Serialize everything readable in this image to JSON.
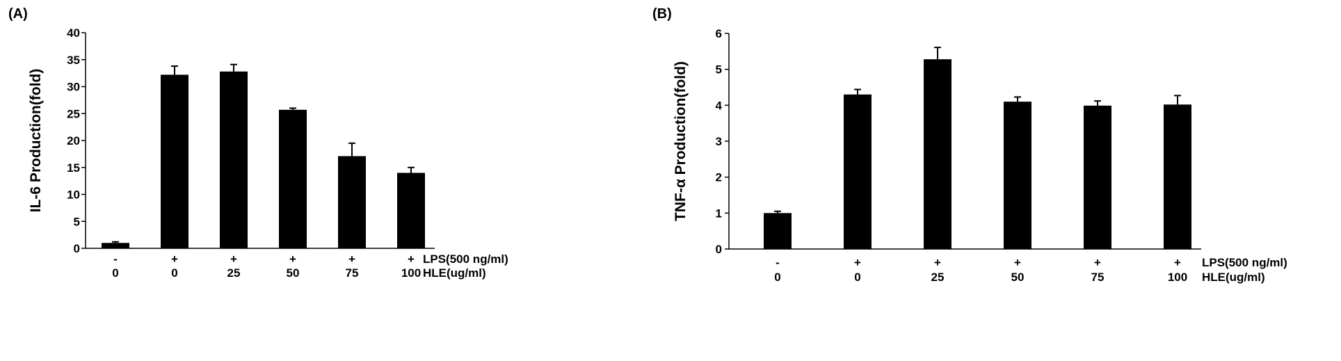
{
  "chart_data": [
    {
      "type": "bar",
      "panel_label": "(A)",
      "ylabel": "IL-6 Production(fold)",
      "ylim": [
        0,
        40
      ],
      "yticks": [
        0,
        5,
        10,
        15,
        20,
        25,
        30,
        35,
        40
      ],
      "lps": [
        "-",
        "+",
        "+",
        "+",
        "+",
        "+"
      ],
      "hle": [
        "0",
        "0",
        "25",
        "50",
        "75",
        "100"
      ],
      "lps_label": "LPS(500 ng/ml)",
      "hle_label": "HLE(ug/ml)",
      "values": [
        1.0,
        32.2,
        32.8,
        25.7,
        17.1,
        14.0
      ],
      "errors": [
        0.2,
        1.6,
        1.3,
        0.3,
        2.4,
        1.0
      ],
      "bar_color": "#000000",
      "grid": false
    },
    {
      "type": "bar",
      "panel_label": "(B)",
      "ylabel": "TNF-α Production(fold)",
      "ylim": [
        0,
        6
      ],
      "yticks": [
        0,
        1,
        2,
        3,
        4,
        5,
        6
      ],
      "lps": [
        "-",
        "+",
        "+",
        "+",
        "+",
        "+"
      ],
      "hle": [
        "0",
        "0",
        "25",
        "50",
        "75",
        "100"
      ],
      "lps_label": "LPS(500 ng/ml)",
      "hle_label": "HLE(ug/ml)",
      "values": [
        1.0,
        4.3,
        5.28,
        4.1,
        3.99,
        4.02
      ],
      "errors": [
        0.05,
        0.14,
        0.33,
        0.13,
        0.13,
        0.25
      ],
      "bar_color": "#000000",
      "grid": false
    }
  ]
}
